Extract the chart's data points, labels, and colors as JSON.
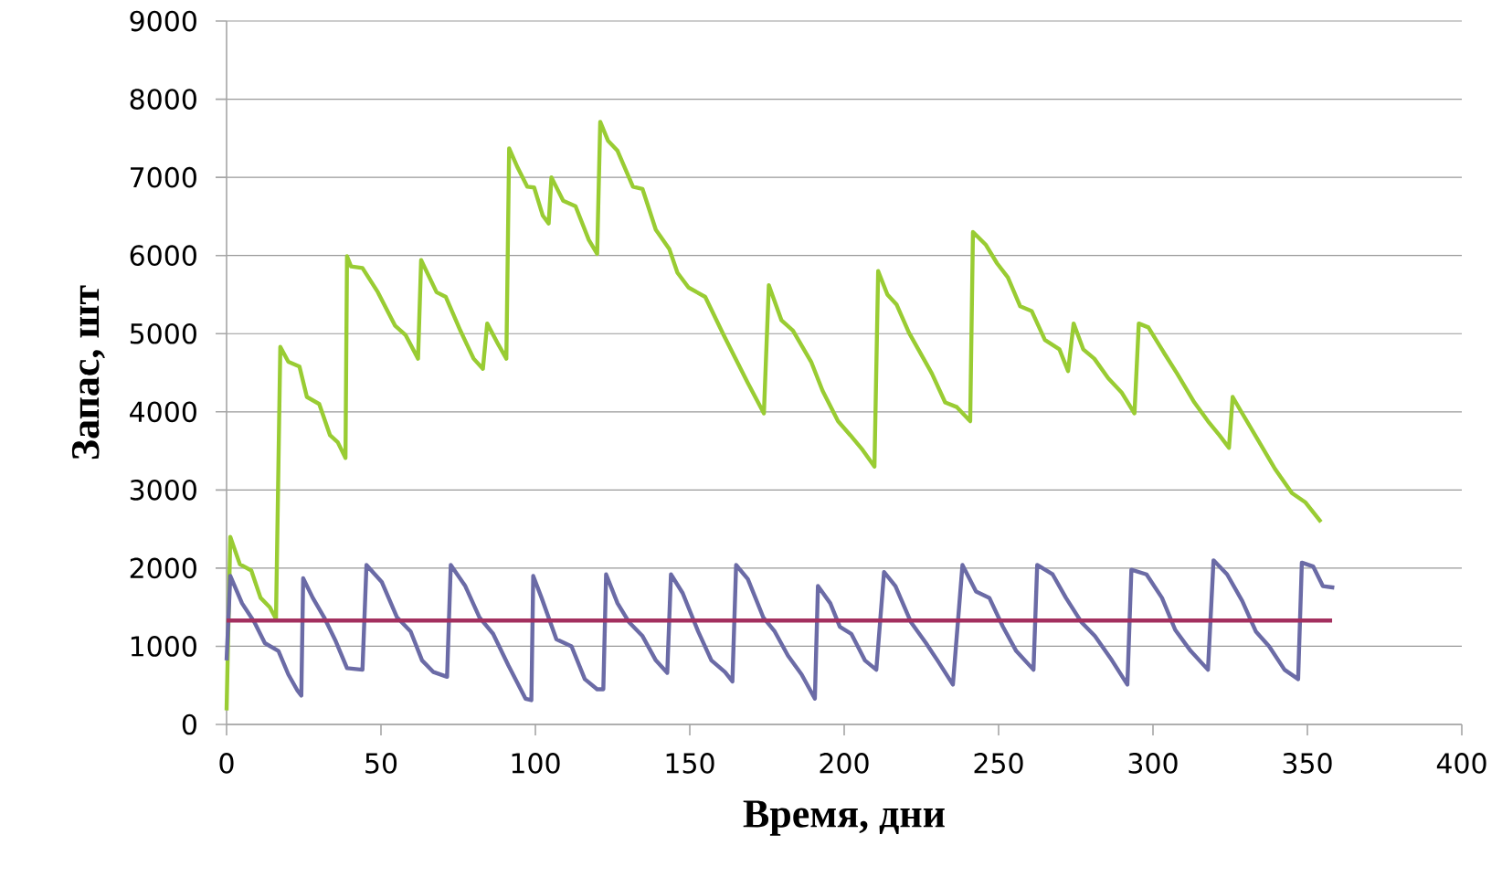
{
  "chart_data": {
    "type": "line",
    "xlabel": "Время, дни",
    "ylabel": "Запас, шт",
    "xlim": [
      0,
      400
    ],
    "ylim": [
      0,
      9000
    ],
    "xticks": [
      0,
      50,
      100,
      150,
      200,
      250,
      300,
      350,
      400
    ],
    "yticks": [
      0,
      1000,
      2000,
      3000,
      4000,
      5000,
      6000,
      7000,
      8000,
      9000
    ],
    "grid": "y",
    "marker": "none",
    "line_style": "solid",
    "series": [
      {
        "color": "#99cc33",
        "x": [
          0,
          1.2,
          4.3,
          8,
          11,
          14,
          16,
          17.4,
          20,
          23.6,
          26,
          30,
          33.5,
          36,
          38.5,
          39,
          40.3,
          44,
          49,
          54.6,
          58,
          62,
          63,
          68,
          71,
          75.7,
          80,
          83,
          84.4,
          88,
          90.6,
          91.5,
          94.3,
          97.4,
          99.6,
          102.4,
          104.3,
          105.2,
          109,
          113,
          117.3,
          120,
          121,
          123.5,
          126.6,
          131.6,
          134.7,
          139,
          143.4,
          146,
          149.6,
          155,
          161,
          165.7,
          168.8,
          174,
          175.6,
          179.7,
          183.4,
          189.3,
          193,
          198,
          202,
          206,
          209.8,
          211,
          214,
          217,
          221,
          224,
          228.4,
          232.7,
          236.5,
          240.8,
          241.7,
          245.8,
          249.5,
          253,
          257,
          260.7,
          265,
          269.7,
          272.5,
          274.3,
          277.4,
          281,
          285.5,
          289.8,
          294,
          295.4,
          298.5,
          303.8,
          307.8,
          313.4,
          317.8,
          321.5,
          324.6,
          325.8,
          328.9,
          334,
          339.5,
          345,
          349.4,
          354.4
        ],
        "values": [
          180,
          2400,
          2050,
          1970,
          1620,
          1500,
          1350,
          4830,
          4640,
          4580,
          4190,
          4100,
          3700,
          3610,
          3410,
          5990,
          5860,
          5840,
          5530,
          5100,
          4980,
          4680,
          5940,
          5530,
          5470,
          5040,
          4680,
          4550,
          5130,
          4860,
          4680,
          7370,
          7120,
          6880,
          6870,
          6510,
          6410,
          7000,
          6700,
          6630,
          6200,
          6020,
          7710,
          7470,
          7340,
          6880,
          6850,
          6330,
          6080,
          5780,
          5590,
          5470,
          4980,
          4610,
          4370,
          3980,
          5620,
          5170,
          5040,
          4640,
          4270,
          3880,
          3700,
          3510,
          3300,
          5800,
          5500,
          5370,
          5010,
          4800,
          4490,
          4120,
          4060,
          3880,
          6300,
          6140,
          5900,
          5720,
          5350,
          5290,
          4920,
          4800,
          4520,
          5130,
          4800,
          4680,
          4430,
          4250,
          3980,
          5130,
          5080,
          4740,
          4490,
          4120,
          3880,
          3700,
          3540,
          4190,
          3980,
          3640,
          3270,
          2960,
          2840,
          2590
        ]
      },
      {
        "color": "#6b6ba6",
        "x": [
          0,
          1.2,
          5,
          9,
          12.4,
          16.8,
          20,
          23,
          24.2,
          24.8,
          27.9,
          31.6,
          35.4,
          39,
          44,
          45.3,
          50.3,
          55.2,
          59.6,
          63.3,
          67,
          71.4,
          72.6,
          77.3,
          81.9,
          86.3,
          91.2,
          96.8,
          98.7,
          99.3,
          102,
          106.8,
          111.7,
          116,
          120,
          122,
          122.9,
          126.6,
          130.3,
          134.7,
          139,
          142.7,
          143.9,
          147.7,
          152.7,
          157,
          161.4,
          163.8,
          165,
          168.8,
          173.8,
          177.5,
          181.8,
          186.2,
          190.5,
          191.5,
          195.5,
          198.6,
          202.3,
          206.7,
          210.4,
          212.9,
          216.6,
          221.6,
          226.5,
          230.2,
          235.2,
          238.3,
          242.7,
          247,
          251.4,
          255.7,
          261.3,
          262.5,
          267.5,
          271.8,
          276.8,
          281.2,
          286.7,
          291.7,
          293,
          297.9,
          302.9,
          307.2,
          312.2,
          317.8,
          319.6,
          324,
          328.9,
          333.3,
          337.6,
          342.6,
          347,
          348.2,
          351.9,
          355,
          358.7
        ],
        "values": [
          820,
          1900,
          1550,
          1310,
          1040,
          940,
          640,
          430,
          370,
          1870,
          1620,
          1370,
          1060,
          720,
          700,
          2040,
          1820,
          1370,
          1190,
          820,
          670,
          610,
          2040,
          1770,
          1370,
          1160,
          760,
          330,
          310,
          1900,
          1620,
          1090,
          1000,
          580,
          450,
          450,
          1920,
          1550,
          1310,
          1130,
          820,
          660,
          1920,
          1680,
          1190,
          820,
          670,
          550,
          2040,
          1860,
          1370,
          1190,
          880,
          640,
          330,
          1770,
          1550,
          1250,
          1160,
          820,
          700,
          1950,
          1770,
          1310,
          1040,
          820,
          510,
          2040,
          1700,
          1620,
          1250,
          940,
          700,
          2040,
          1920,
          1620,
          1310,
          1130,
          820,
          510,
          1980,
          1920,
          1620,
          1210,
          940,
          700,
          2100,
          1920,
          1580,
          1190,
          1000,
          700,
          580,
          2070,
          2020,
          1770,
          1750
        ]
      },
      {
        "color": "#a3305f",
        "x": [
          0,
          358
        ],
        "values": [
          1330,
          1330
        ]
      }
    ]
  }
}
